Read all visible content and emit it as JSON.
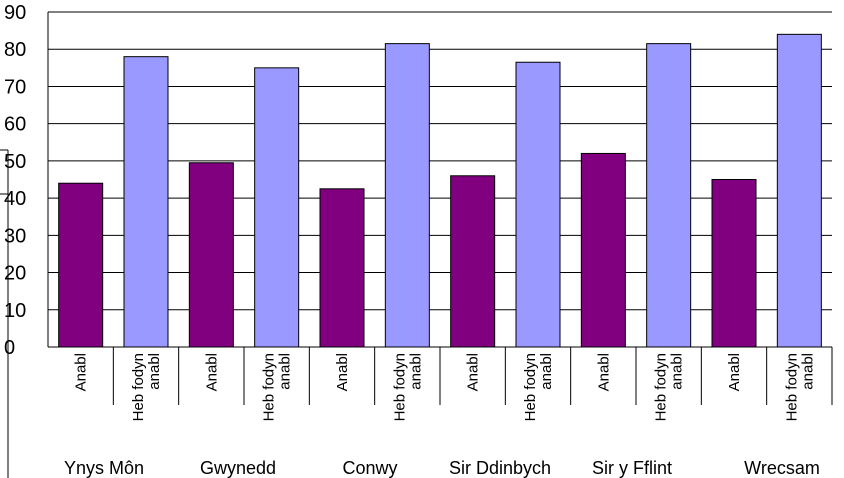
{
  "chart_data": {
    "type": "bar",
    "title": "",
    "xlabel": "",
    "ylabel": "",
    "ylim": [
      0,
      90
    ],
    "yticks": [
      "0",
      "10",
      "20",
      "30",
      "40",
      "50",
      "60",
      "70",
      "80",
      "90"
    ],
    "grid": true,
    "legend": "none",
    "groups": [
      "Ynys Môn",
      "Gwynedd",
      "Conwy",
      "Sir Ddinbych",
      "Sir y Fflint",
      "Wrecsam"
    ],
    "categories": [
      [
        "Anabl"
      ],
      [
        "Heb fodyn",
        "anabl"
      ],
      [
        "Anabl"
      ],
      [
        "Heb fodyn",
        "anabl"
      ],
      [
        "Anabl"
      ],
      [
        "Heb fodyn",
        "anabl"
      ],
      [
        "Anabl"
      ],
      [
        "Heb fodyn",
        "anabl"
      ],
      [
        "Anabl"
      ],
      [
        "Heb fodyn",
        "anabl"
      ],
      [
        "Anabl"
      ],
      [
        "Heb fodyn",
        "anabl"
      ]
    ],
    "values": [
      44,
      78,
      49.5,
      75,
      42.5,
      81.5,
      46,
      76.5,
      52,
      81.5,
      45,
      84
    ],
    "colors": [
      "#800080",
      "#9999ff",
      "#800080",
      "#9999ff",
      "#800080",
      "#9999ff",
      "#800080",
      "#9999ff",
      "#800080",
      "#9999ff",
      "#800080",
      "#9999ff"
    ]
  }
}
